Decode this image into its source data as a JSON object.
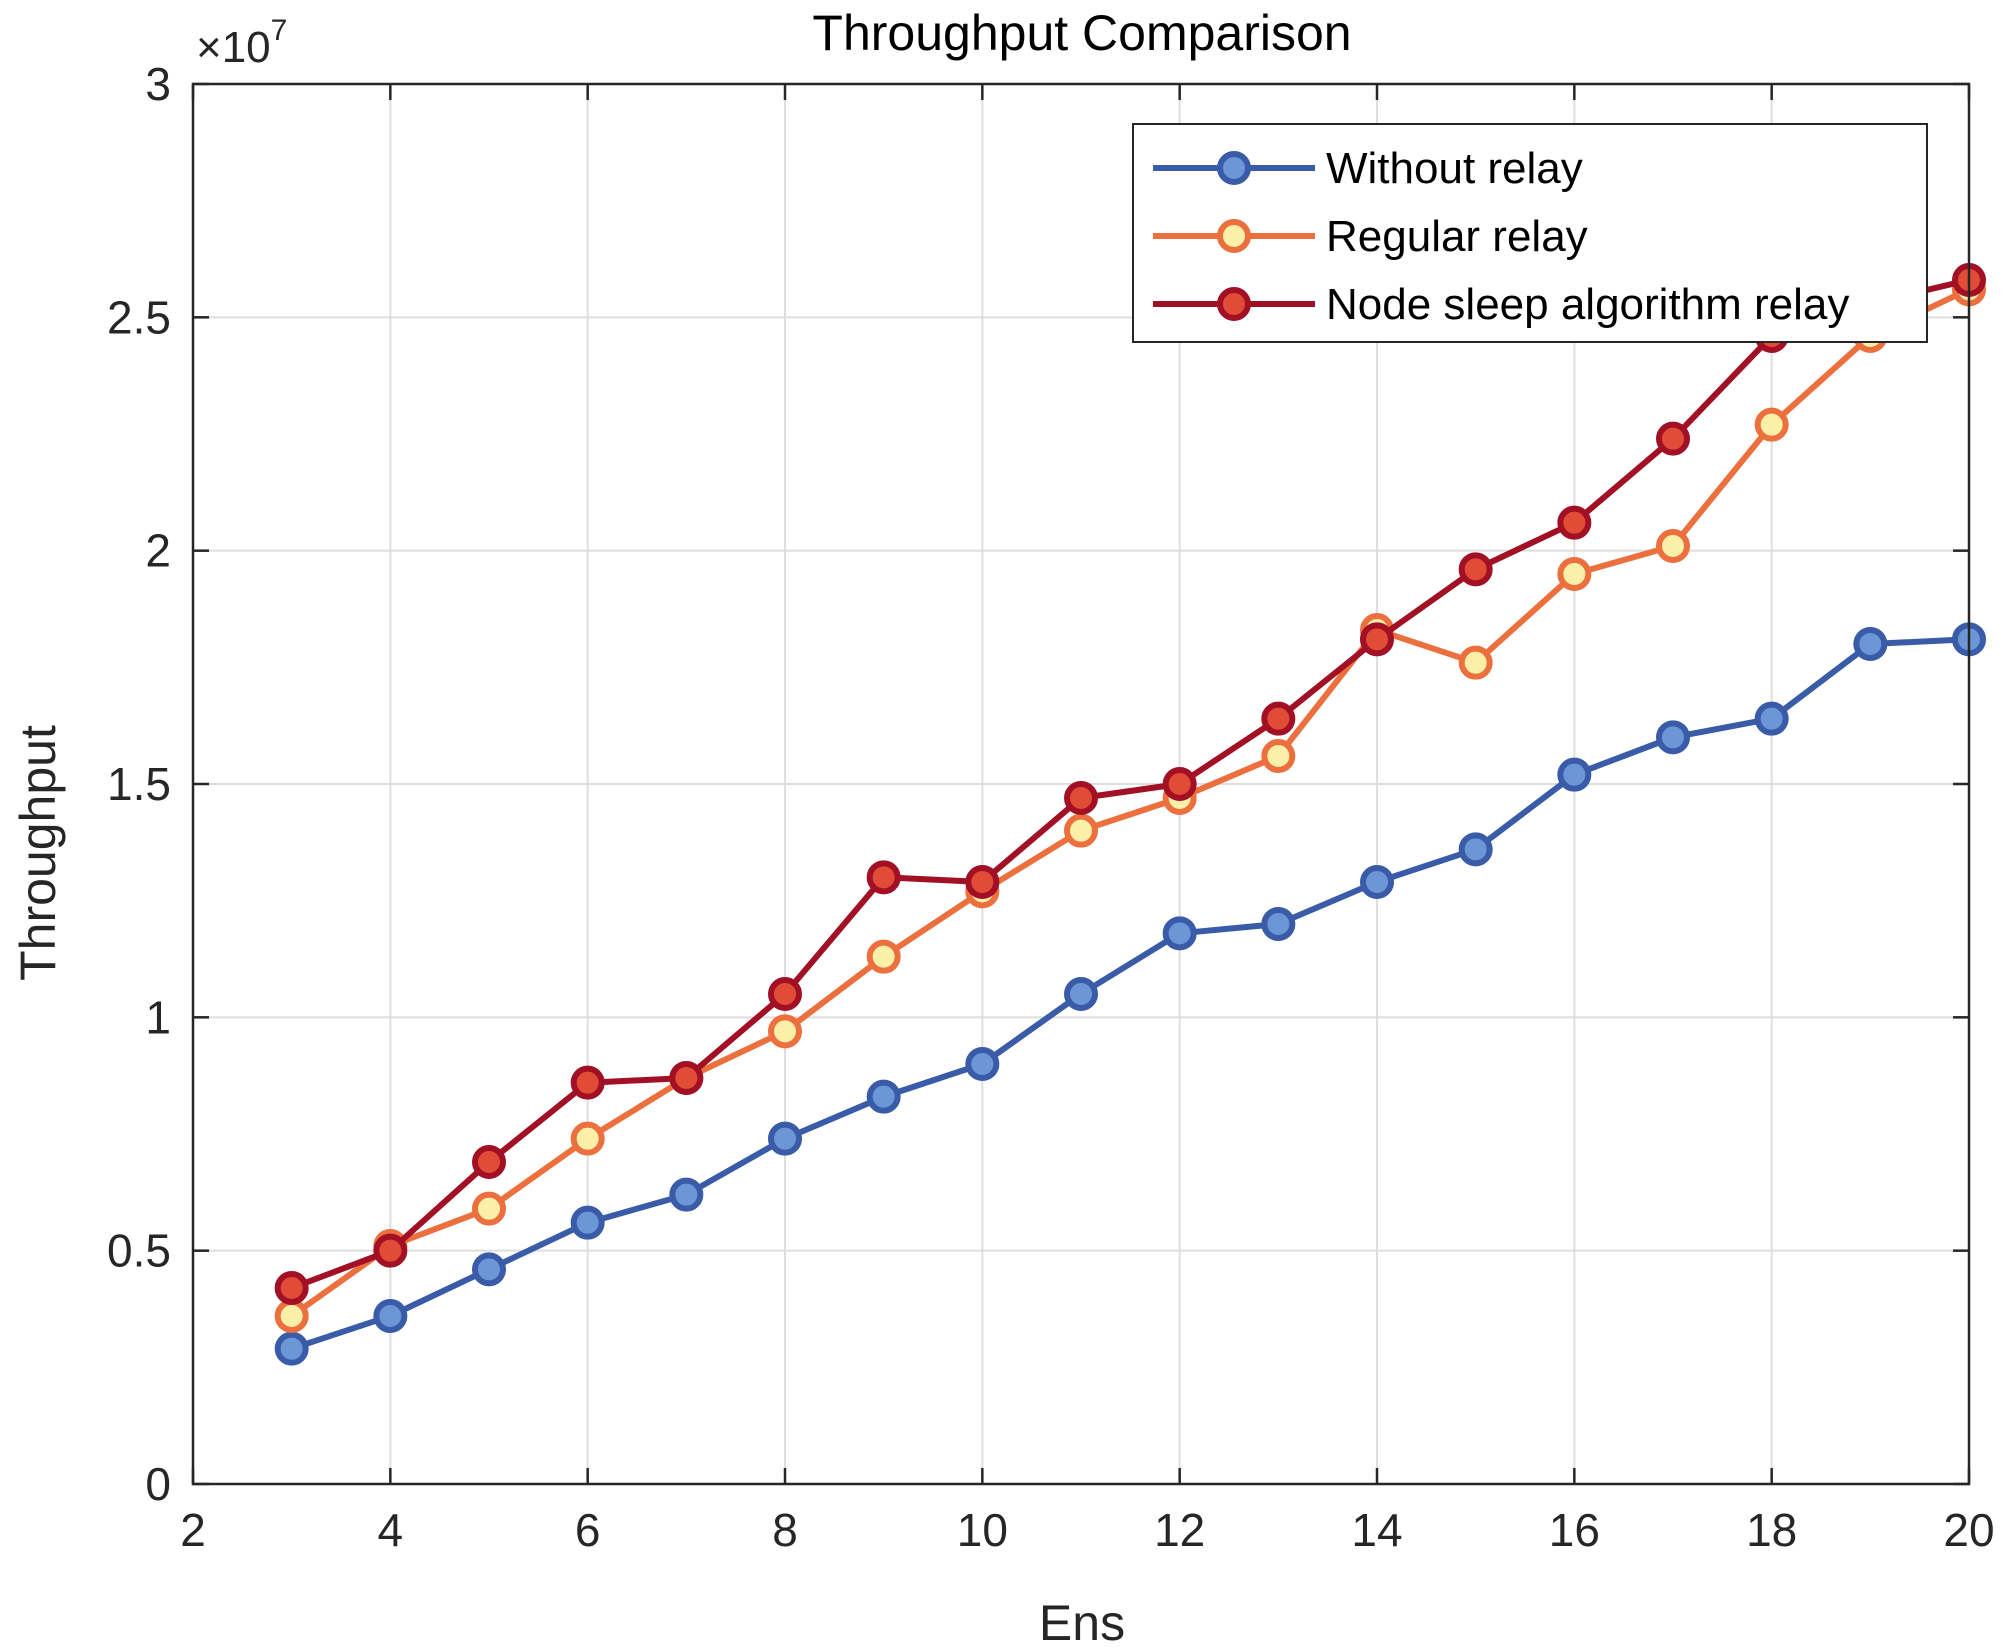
{
  "chart_data": {
    "type": "line",
    "title": "Throughput Comparison",
    "xlabel": "Ens",
    "ylabel": "Throughput",
    "y_exponent_base": "×10",
    "y_exponent_power": "7",
    "xlim": [
      2,
      20
    ],
    "ylim": [
      0,
      3
    ],
    "x_ticks": [
      2,
      4,
      6,
      8,
      10,
      12,
      14,
      16,
      18,
      20
    ],
    "x_tick_labels": [
      "2",
      "4",
      "6",
      "8",
      "10",
      "12",
      "14",
      "16",
      "18",
      "20"
    ],
    "y_ticks": [
      0,
      0.5,
      1,
      1.5,
      2,
      2.5,
      3
    ],
    "y_tick_labels": [
      "0",
      "0.5",
      "1",
      "1.5",
      "2",
      "2.5",
      "3"
    ],
    "grid": true,
    "legend_position": "top-right",
    "x": [
      3,
      4,
      5,
      6,
      7,
      8,
      9,
      10,
      11,
      12,
      13,
      14,
      15,
      16,
      17,
      18,
      19,
      20
    ],
    "series": [
      {
        "name": "Without relay",
        "color": "#3A5BA7",
        "marker_fill": "#6C96D6",
        "values": [
          0.29,
          0.36,
          0.46,
          0.56,
          0.62,
          0.74,
          0.83,
          0.9,
          1.05,
          1.18,
          1.2,
          1.29,
          1.36,
          1.52,
          1.6,
          1.64,
          1.8,
          1.81
        ]
      },
      {
        "name": "Regular relay",
        "color": "#EC6F3E",
        "marker_fill": "#FCEFA8",
        "values": [
          0.36,
          0.51,
          0.59,
          0.74,
          0.87,
          0.97,
          1.13,
          1.27,
          1.4,
          1.47,
          1.56,
          1.83,
          1.76,
          1.95,
          2.01,
          2.27,
          2.46,
          2.56
        ]
      },
      {
        "name": "Node sleep algorithm relay",
        "color": "#A11024",
        "marker_fill": "#E24B36",
        "values": [
          0.42,
          0.5,
          0.69,
          0.86,
          0.87,
          1.05,
          1.3,
          1.29,
          1.47,
          1.5,
          1.64,
          1.81,
          1.96,
          2.06,
          2.24,
          2.46,
          2.53,
          2.58
        ]
      }
    ]
  }
}
